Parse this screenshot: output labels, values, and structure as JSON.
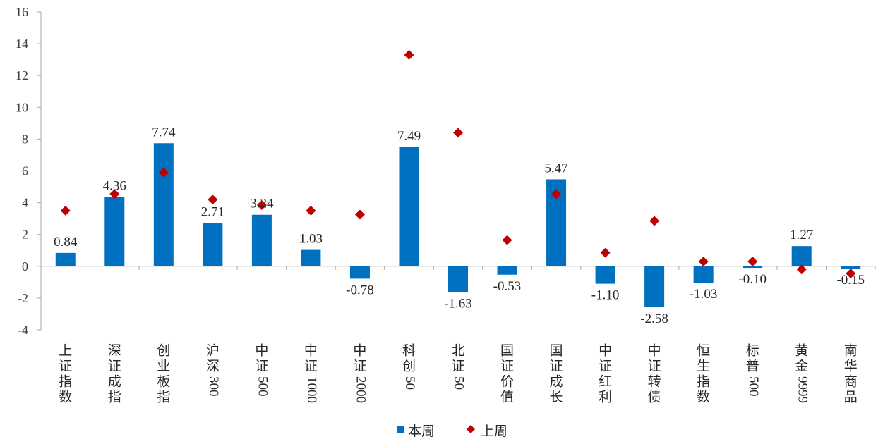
{
  "chart_data": {
    "type": "bar",
    "categories": [
      "上证指数",
      "深证成指",
      "创业板指",
      "沪深300",
      "中证500",
      "中证1000",
      "中证2000",
      "科创50",
      "北证50",
      "国证价值",
      "国证成长",
      "中证红利",
      "中证转债",
      "恒生指数",
      "标普500",
      "黄金9999",
      "南华商品"
    ],
    "series": [
      {
        "name": "本周",
        "type": "bar",
        "color": "#0070c0",
        "values": [
          0.84,
          4.36,
          7.74,
          2.71,
          3.24,
          1.03,
          -0.78,
          7.49,
          -1.63,
          -0.53,
          5.47,
          -1.1,
          -2.58,
          -1.03,
          -0.1,
          1.27,
          -0.15
        ],
        "labels": [
          "0.84",
          "4.36",
          "7.74",
          "2.71",
          "3.24",
          "1.03",
          "-0.78",
          "7.49",
          "-1.63",
          "-0.53",
          "5.47",
          "-1.10",
          "-2.58",
          "-1.03",
          "-0.10",
          "1.27",
          "-0.15"
        ]
      },
      {
        "name": "上周",
        "type": "scatter",
        "marker": "diamond",
        "color": "#c00000",
        "values": [
          3.5,
          4.55,
          5.9,
          4.2,
          3.85,
          3.5,
          3.25,
          13.3,
          8.4,
          1.65,
          4.55,
          0.85,
          2.85,
          0.3,
          0.3,
          -0.2,
          -0.45
        ]
      }
    ],
    "ylim": [
      -4,
      16
    ],
    "yticks": [
      -4,
      -2,
      0,
      2,
      4,
      6,
      8,
      10,
      12,
      14,
      16
    ],
    "title": "",
    "xlabel": "",
    "ylabel": "",
    "grid": false,
    "legend": "bottom-center"
  }
}
